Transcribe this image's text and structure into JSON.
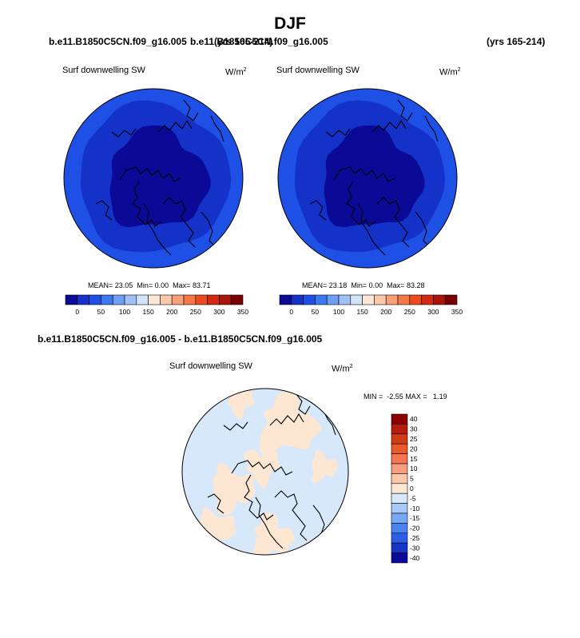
{
  "title": "DJF",
  "top_left_case": "b.e11.B1850C5CN.f09_g16.005",
  "top_left_years": "(yrs 165-214)",
  "top_right_case": "b.e11.B1850C5CN.f09_g16.005",
  "top_right_years": "(yrs 165-214)",
  "diff_title": "b.e11.B1850C5CN.f09_g16.005 - b.e11.B1850C5CN.f09_g16.005",
  "chart_data": [
    {
      "type": "heatmap",
      "projection": "polar stereographic (north)",
      "variable": "Surf downwelling SW",
      "units": "W/m",
      "units_exp": "2",
      "stats": {
        "mean_label": "MEAN=",
        "mean": "23.05",
        "min_label": "Min=",
        "min": "0.00",
        "max_label": "Max=",
        "max": "83.71"
      },
      "levels": [
        0,
        25,
        50,
        75,
        100,
        125,
        150,
        175,
        200,
        225,
        250,
        275,
        300,
        325,
        350
      ],
      "colorbar_labels": [
        "0",
        "50",
        "100",
        "150",
        "200",
        "250",
        "300",
        "350"
      ],
      "colors": [
        "#0a0a96",
        "#1432c8",
        "#1e50e6",
        "#3c78f0",
        "#6e9ef5",
        "#a0c0f8",
        "#d2e4fa",
        "#fde6d6",
        "#fbc8aa",
        "#f8a078",
        "#f57846",
        "#eb4b1e",
        "#d22814",
        "#aa140a",
        "#780000"
      ]
    },
    {
      "type": "heatmap",
      "projection": "polar stereographic (north)",
      "variable": "Surf downwelling SW",
      "units": "W/m",
      "units_exp": "2",
      "stats": {
        "mean_label": "MEAN=",
        "mean": "23.18",
        "min_label": "Min=",
        "min": "0.00",
        "max_label": "Max=",
        "max": "83.28"
      },
      "levels": [
        0,
        25,
        50,
        75,
        100,
        125,
        150,
        175,
        200,
        225,
        250,
        275,
        300,
        325,
        350
      ],
      "colorbar_labels": [
        "0",
        "50",
        "100",
        "150",
        "200",
        "250",
        "300",
        "350"
      ],
      "colors": [
        "#0a0a96",
        "#1432c8",
        "#1e50e6",
        "#3c78f0",
        "#6e9ef5",
        "#a0c0f8",
        "#d2e4fa",
        "#fde6d6",
        "#fbc8aa",
        "#f8a078",
        "#f57846",
        "#eb4b1e",
        "#d22814",
        "#aa140a",
        "#780000"
      ]
    },
    {
      "type": "heatmap",
      "projection": "polar stereographic (north)",
      "variable": "Surf downwelling SW",
      "units": "W/m",
      "units_exp": "2",
      "stats": {
        "min_label": "MIN =",
        "min": "-2.55",
        "max_label": "MAX =",
        "max": "1.19"
      },
      "colorbar_labels": [
        "40",
        "30",
        "25",
        "20",
        "15",
        "10",
        "5",
        "0",
        "-5",
        "-10",
        "-15",
        "-20",
        "-25",
        "-30",
        "-40"
      ],
      "colors": [
        "#8b0000",
        "#b41e0a",
        "#d23c14",
        "#eb5a28",
        "#f57850",
        "#f89e80",
        "#fbc8aa",
        "#fde6d2",
        "#d6e8fa",
        "#a8c8f8",
        "#78a8f5",
        "#4a82f0",
        "#2a5ee6",
        "#1435c8",
        "#0a0a96"
      ]
    }
  ]
}
